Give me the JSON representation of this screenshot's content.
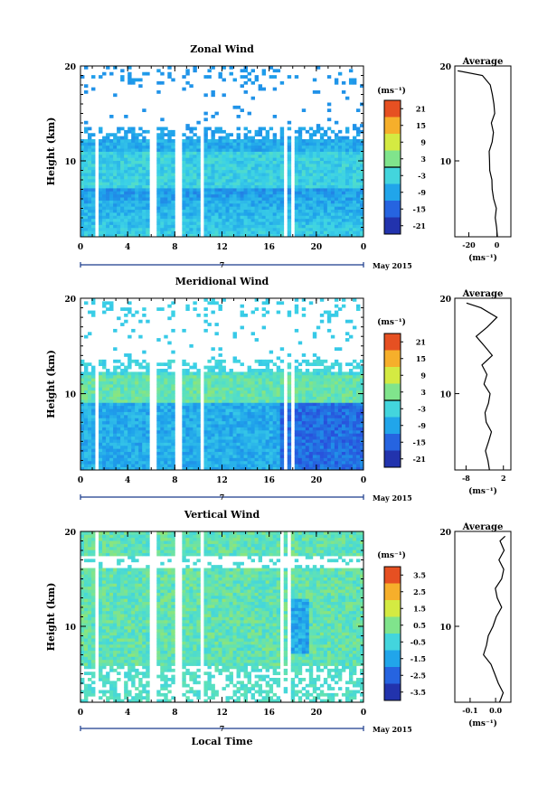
{
  "chart_data": [
    {
      "type": "heatmap",
      "title": "Zonal Wind",
      "ylabel": "Height (km)",
      "xlabel": "",
      "date_label": "May 2015",
      "day_label": "7",
      "x_ticks": [
        "0",
        "4",
        "8",
        "12",
        "16",
        "20",
        "0"
      ],
      "y_ticks": [
        "10",
        "20"
      ],
      "xlim": [
        0,
        24
      ],
      "ylim": [
        2,
        20
      ],
      "colorbar": {
        "unit_html": "(ms⁻¹)",
        "levels": [
          "21",
          "15",
          "9",
          "3",
          "-3",
          "-9",
          "-15",
          "-21"
        ],
        "range": [
          -24,
          24
        ],
        "zero_contour": 0
      },
      "field_summary": {
        "low_level_mean": -12,
        "mid_level_mean": -3,
        "upper_level_mean": -8
      },
      "data_gaps_hours": [
        [
          1.1,
          1.6
        ],
        [
          5.8,
          6.4
        ],
        [
          8.1,
          8.5
        ],
        [
          10.1,
          10.6
        ],
        [
          17.1,
          17.5
        ],
        [
          17.8,
          18.2
        ]
      ],
      "profile": {
        "title": "Average",
        "xlabel": "(ms⁻¹)",
        "x_ticks": [
          "-20",
          "0"
        ],
        "xlim": [
          -30,
          10
        ],
        "y_ticks": [
          "10",
          "20"
        ],
        "heights": [
          2,
          3,
          4,
          5,
          6,
          7,
          8,
          9,
          10,
          11,
          12,
          13,
          14,
          15,
          16,
          17,
          18,
          19,
          19.5
        ],
        "values": [
          0,
          0,
          -1,
          -1,
          -2,
          -3,
          -4,
          -5,
          -6,
          -5,
          -3,
          -2,
          -4,
          -1,
          -2,
          -3,
          -5,
          -10,
          -28
        ]
      }
    },
    {
      "type": "heatmap",
      "title": "Meridional Wind",
      "ylabel": "Height (km)",
      "xlabel": "",
      "date_label": "May 2015",
      "day_label": "7",
      "x_ticks": [
        "0",
        "4",
        "8",
        "12",
        "16",
        "20",
        "0"
      ],
      "y_ticks": [
        "10",
        "20"
      ],
      "xlim": [
        0,
        24
      ],
      "ylim": [
        2,
        20
      ],
      "colorbar": {
        "unit_html": "(ms⁻¹)",
        "levels": [
          "21",
          "15",
          "9",
          "3",
          "-3",
          "-9",
          "-15",
          "-21"
        ],
        "range": [
          -24,
          24
        ],
        "zero_contour": 0
      },
      "field_summary": {
        "low_level_mean": -6,
        "mid_level_mean": 0,
        "upper_level_mean": -2
      },
      "data_gaps_hours": [
        [
          1.1,
          1.6
        ],
        [
          5.8,
          6.4
        ],
        [
          8.1,
          8.5
        ],
        [
          10.1,
          10.6
        ],
        [
          17.1,
          17.5
        ],
        [
          17.8,
          18.2
        ]
      ],
      "profile": {
        "title": "Average",
        "xlabel": "(ms⁻¹)",
        "x_ticks": [
          "-8",
          "2"
        ],
        "xlim": [
          -11,
          4
        ],
        "y_ticks": [
          "10",
          "20"
        ],
        "heights": [
          2,
          3,
          4,
          5,
          6,
          7,
          8,
          9,
          10,
          11,
          12,
          13,
          14,
          15,
          16,
          17,
          18,
          19,
          19.5
        ],
        "values": [
          -1.5,
          -2,
          -2.5,
          -2,
          -1.5,
          -2.5,
          -3,
          -2,
          -1.5,
          -3,
          -2.5,
          -4,
          -1,
          -3,
          -5,
          -2,
          0,
          -4,
          -8
        ]
      }
    },
    {
      "type": "heatmap",
      "title": "Vertical Wind",
      "ylabel": "Height (km)",
      "xlabel": "Local Time",
      "date_label": "May 2015",
      "day_label": "7",
      "x_ticks": [
        "0",
        "4",
        "8",
        "12",
        "16",
        "20",
        "0"
      ],
      "y_ticks": [
        "10",
        "20"
      ],
      "xlim": [
        0,
        24
      ],
      "ylim": [
        2,
        20
      ],
      "colorbar": {
        "unit_html": "(ms⁻¹)",
        "levels": [
          "3.5",
          "2.5",
          "1.5",
          "0.5",
          "-0.5",
          "-1.5",
          "-2.5",
          "-3.5"
        ],
        "range": [
          -4,
          4
        ]
      },
      "field_summary": {
        "low_level_mean": 0,
        "mid_level_mean": 0.1,
        "upper_level_mean": 0
      },
      "data_gaps_hours": [
        [
          1.1,
          1.6
        ],
        [
          5.8,
          6.4
        ],
        [
          8.1,
          8.5
        ],
        [
          10.1,
          10.6
        ],
        [
          16.9,
          17.2
        ],
        [
          17.6,
          17.9
        ]
      ],
      "profile": {
        "title": "Average",
        "xlabel": "(ms⁻¹)",
        "x_ticks": [
          "-0.1",
          "0.0"
        ],
        "xlim": [
          -0.16,
          0.06
        ],
        "y_ticks": [
          "10",
          "20"
        ],
        "heights": [
          2,
          3,
          4,
          5,
          6,
          7,
          8,
          9,
          10,
          11,
          12,
          13,
          14,
          15,
          16,
          17,
          18,
          19,
          19.5
        ],
        "values": [
          0.02,
          0.03,
          0.01,
          0.0,
          -0.02,
          -0.05,
          -0.04,
          -0.03,
          -0.01,
          0.0,
          0.02,
          0.01,
          0.0,
          0.02,
          0.03,
          0.01,
          0.03,
          0.02,
          0.04
        ]
      }
    }
  ]
}
